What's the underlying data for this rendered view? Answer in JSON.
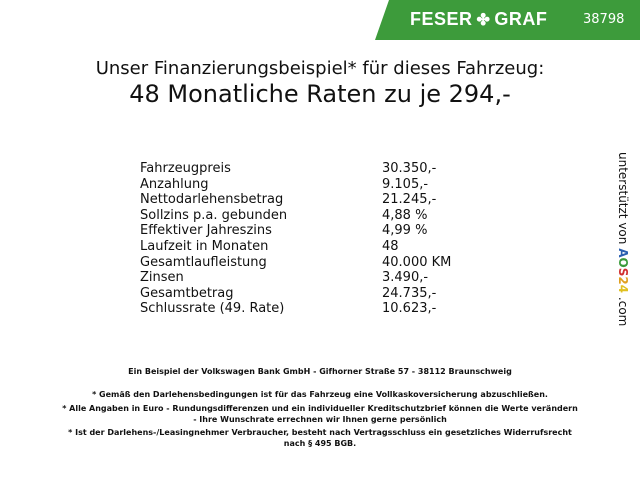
{
  "header": {
    "brand": "FESER",
    "brand2": "GRAF",
    "logo_icon": "clover-icon",
    "code": "38798",
    "color": "#3d9b3b"
  },
  "title": {
    "line1": "Unser Finanzierungsbeispiel* für dieses Fahrzeug:",
    "line2": "48 Monatliche Raten zu je 294,-"
  },
  "rows": [
    {
      "label": "Fahrzeugpreis",
      "value": "30.350,-"
    },
    {
      "label": "Anzahlung",
      "value": "9.105,-"
    },
    {
      "label": "Nettodarlehensbetrag",
      "value": "21.245,-"
    },
    {
      "label": "Sollzins p.a. gebunden",
      "value": "4,88 %"
    },
    {
      "label": "Effektiver Jahreszins",
      "value": "4,99 %"
    },
    {
      "label": "Laufzeit in Monaten",
      "value": "48"
    },
    {
      "label": "Gesamtlaufleistung",
      "value": "40.000 KM"
    },
    {
      "label": "Zinsen",
      "value": "3.490,-"
    },
    {
      "label": "Gesamtbetrag",
      "value": "24.735,-"
    },
    {
      "label": "Schlussrate (49. Rate)",
      "value": "10.623,-"
    }
  ],
  "side": {
    "text": "unterstützt von",
    "logo": "AOS24",
    "suffix": ".com"
  },
  "footer": {
    "bank": "Ein Beispiel der Volkswagen Bank GmbH - Gifhorner Straße 57 - 38112 Braunschweig",
    "note1": "* Gemäß den Darlehensbedingungen ist für das Fahrzeug eine Vollkaskoversicherung abzuschließen.",
    "note2a": "* Alle Angaben in Euro - Rundungsdifferenzen und ein individueller Kreditschutzbrief können die Werte verändern",
    "note2b": "- Ihre Wunschrate errechnen wir Ihnen gerne persönlich",
    "note3a": "* Ist der Darlehens-/Leasingnehmer Verbraucher, besteht nach Vertragsschluss ein gesetzliches Widerrufsrecht",
    "note3b": "nach § 495 BGB."
  }
}
